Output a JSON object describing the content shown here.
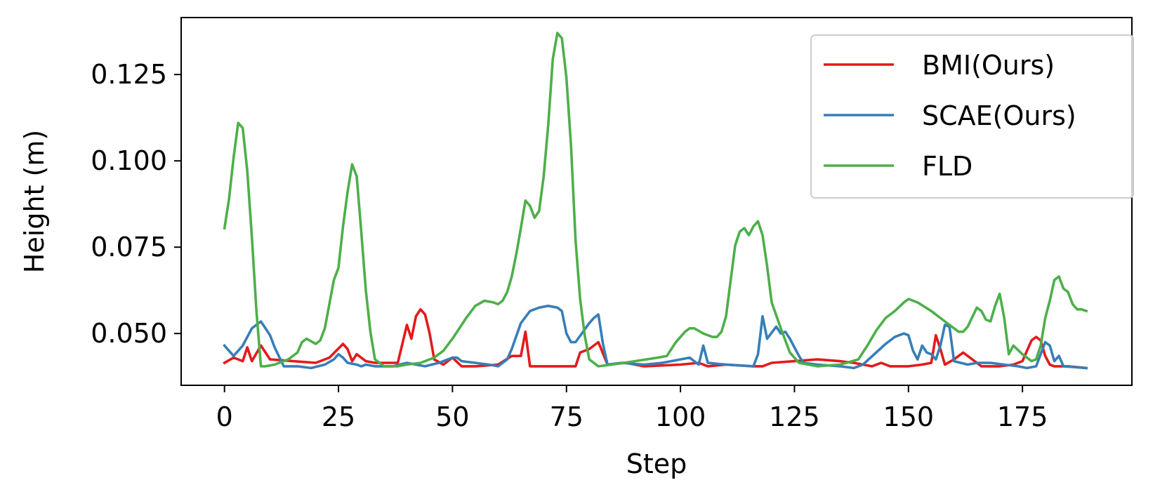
{
  "chart_data": {
    "type": "line",
    "xlabel": "Step",
    "ylabel": "Height (m)",
    "xlim": [
      -9.5,
      199
    ],
    "ylim": [
      0.035,
      0.1415
    ],
    "xticks": [
      0,
      25,
      50,
      75,
      100,
      125,
      150,
      175
    ],
    "xtick_labels": [
      "0",
      "25",
      "50",
      "75",
      "100",
      "125",
      "150",
      "175"
    ],
    "yticks": [
      0.05,
      0.075,
      0.1,
      0.125
    ],
    "ytick_labels": [
      "0.050",
      "0.075",
      "0.100",
      "0.125"
    ],
    "grid": false,
    "legend_position": "top-right",
    "series": [
      {
        "name": "BMI(Ours)",
        "color": "#e41a1c",
        "points": [
          [
            0,
            0.0415
          ],
          [
            2,
            0.043
          ],
          [
            4,
            0.042
          ],
          [
            5,
            0.046
          ],
          [
            6,
            0.042
          ],
          [
            8,
            0.0465
          ],
          [
            10,
            0.0425
          ],
          [
            15,
            0.042
          ],
          [
            20,
            0.0415
          ],
          [
            23,
            0.043
          ],
          [
            26,
            0.047
          ],
          [
            27,
            0.0455
          ],
          [
            28,
            0.042
          ],
          [
            29,
            0.044
          ],
          [
            31,
            0.042
          ],
          [
            33,
            0.0415
          ],
          [
            38,
            0.0415
          ],
          [
            40,
            0.0525
          ],
          [
            41,
            0.0485
          ],
          [
            42,
            0.055
          ],
          [
            43,
            0.057
          ],
          [
            44,
            0.0555
          ],
          [
            45,
            0.05
          ],
          [
            46,
            0.0425
          ],
          [
            48,
            0.041
          ],
          [
            50,
            0.043
          ],
          [
            52,
            0.0405
          ],
          [
            55,
            0.0405
          ],
          [
            60,
            0.041
          ],
          [
            63,
            0.0435
          ],
          [
            65,
            0.0435
          ],
          [
            66,
            0.0505
          ],
          [
            67,
            0.0405
          ],
          [
            72,
            0.0405
          ],
          [
            75,
            0.0405
          ],
          [
            77,
            0.0405
          ],
          [
            78,
            0.0445
          ],
          [
            80,
            0.0455
          ],
          [
            82,
            0.0475
          ],
          [
            84,
            0.041
          ],
          [
            88,
            0.0415
          ],
          [
            92,
            0.0405
          ],
          [
            100,
            0.041
          ],
          [
            104,
            0.0415
          ],
          [
            106,
            0.0405
          ],
          [
            110,
            0.041
          ],
          [
            116,
            0.0405
          ],
          [
            118,
            0.0405
          ],
          [
            120,
            0.0415
          ],
          [
            125,
            0.042
          ],
          [
            130,
            0.0425
          ],
          [
            135,
            0.042
          ],
          [
            138,
            0.0415
          ],
          [
            140,
            0.041
          ],
          [
            142,
            0.0405
          ],
          [
            143,
            0.041
          ],
          [
            144,
            0.0415
          ],
          [
            146,
            0.0405
          ],
          [
            150,
            0.0405
          ],
          [
            153,
            0.041
          ],
          [
            155,
            0.0415
          ],
          [
            156,
            0.0495
          ],
          [
            157,
            0.0455
          ],
          [
            158,
            0.041
          ],
          [
            160,
            0.0425
          ],
          [
            162,
            0.0445
          ],
          [
            164,
            0.0425
          ],
          [
            166,
            0.0405
          ],
          [
            170,
            0.0405
          ],
          [
            173,
            0.041
          ],
          [
            175,
            0.042
          ],
          [
            177,
            0.048
          ],
          [
            178,
            0.049
          ],
          [
            179,
            0.048
          ],
          [
            180,
            0.0435
          ],
          [
            181,
            0.041
          ],
          [
            182,
            0.0405
          ],
          [
            185,
            0.0405
          ],
          [
            189,
            0.04
          ]
        ]
      },
      {
        "name": "SCAE(Ours)",
        "color": "#377eb8",
        "points": [
          [
            0,
            0.0465
          ],
          [
            2,
            0.0435
          ],
          [
            4,
            0.0465
          ],
          [
            6,
            0.0515
          ],
          [
            7,
            0.0525
          ],
          [
            8,
            0.0535
          ],
          [
            10,
            0.0495
          ],
          [
            11,
            0.046
          ],
          [
            13,
            0.0405
          ],
          [
            16,
            0.0405
          ],
          [
            19,
            0.04
          ],
          [
            22,
            0.041
          ],
          [
            24,
            0.0425
          ],
          [
            25,
            0.044
          ],
          [
            26,
            0.043
          ],
          [
            27,
            0.0415
          ],
          [
            29,
            0.041
          ],
          [
            30,
            0.0405
          ],
          [
            31,
            0.041
          ],
          [
            33,
            0.0405
          ],
          [
            37,
            0.0405
          ],
          [
            40,
            0.0415
          ],
          [
            42,
            0.041
          ],
          [
            44,
            0.0405
          ],
          [
            47,
            0.0415
          ],
          [
            50,
            0.043
          ],
          [
            51,
            0.043
          ],
          [
            52,
            0.042
          ],
          [
            55,
            0.0415
          ],
          [
            58,
            0.041
          ],
          [
            60,
            0.0405
          ],
          [
            62,
            0.0425
          ],
          [
            63,
            0.0455
          ],
          [
            65,
            0.053
          ],
          [
            67,
            0.0565
          ],
          [
            69,
            0.0575
          ],
          [
            71,
            0.058
          ],
          [
            73,
            0.0575
          ],
          [
            74,
            0.0565
          ],
          [
            75,
            0.05
          ],
          [
            76,
            0.0475
          ],
          [
            77,
            0.0475
          ],
          [
            80,
            0.053
          ],
          [
            81,
            0.0545
          ],
          [
            82,
            0.0555
          ],
          [
            83,
            0.047
          ],
          [
            84,
            0.041
          ],
          [
            87,
            0.0415
          ],
          [
            92,
            0.041
          ],
          [
            96,
            0.0415
          ],
          [
            100,
            0.0425
          ],
          [
            102,
            0.043
          ],
          [
            104,
            0.041
          ],
          [
            105,
            0.0465
          ],
          [
            106,
            0.0415
          ],
          [
            110,
            0.041
          ],
          [
            116,
            0.0405
          ],
          [
            117,
            0.044
          ],
          [
            118,
            0.055
          ],
          [
            119,
            0.0485
          ],
          [
            121,
            0.052
          ],
          [
            122,
            0.05
          ],
          [
            123,
            0.0505
          ],
          [
            124,
            0.0485
          ],
          [
            126,
            0.0435
          ],
          [
            127,
            0.0415
          ],
          [
            130,
            0.041
          ],
          [
            135,
            0.0405
          ],
          [
            138,
            0.04
          ],
          [
            140,
            0.041
          ],
          [
            145,
            0.047
          ],
          [
            147,
            0.049
          ],
          [
            149,
            0.05
          ],
          [
            150,
            0.0495
          ],
          [
            151,
            0.045
          ],
          [
            152,
            0.0425
          ],
          [
            153,
            0.0465
          ],
          [
            154,
            0.0445
          ],
          [
            155,
            0.044
          ],
          [
            156,
            0.0425
          ],
          [
            157,
            0.0465
          ],
          [
            158,
            0.0525
          ],
          [
            159,
            0.052
          ],
          [
            160,
            0.042
          ],
          [
            163,
            0.041
          ],
          [
            165,
            0.0415
          ],
          [
            168,
            0.0415
          ],
          [
            171,
            0.041
          ],
          [
            174,
            0.0405
          ],
          [
            176,
            0.04
          ],
          [
            178,
            0.0405
          ],
          [
            180,
            0.0475
          ],
          [
            181,
            0.0465
          ],
          [
            182,
            0.042
          ],
          [
            183,
            0.0435
          ],
          [
            184,
            0.0405
          ],
          [
            189,
            0.04
          ]
        ]
      },
      {
        "name": "FLD",
        "color": "#4daf4a",
        "points": [
          [
            0,
            0.0805
          ],
          [
            1,
            0.089
          ],
          [
            2,
            0.101
          ],
          [
            3,
            0.111
          ],
          [
            4,
            0.1095
          ],
          [
            5,
            0.097
          ],
          [
            6,
            0.078
          ],
          [
            7,
            0.0565
          ],
          [
            8,
            0.0405
          ],
          [
            9,
            0.0405
          ],
          [
            11,
            0.041
          ],
          [
            14,
            0.0425
          ],
          [
            16,
            0.0445
          ],
          [
            17,
            0.0475
          ],
          [
            18,
            0.0485
          ],
          [
            20,
            0.047
          ],
          [
            21,
            0.048
          ],
          [
            22,
            0.0515
          ],
          [
            24,
            0.0655
          ],
          [
            25,
            0.069
          ],
          [
            26,
            0.081
          ],
          [
            27,
            0.091
          ],
          [
            28,
            0.099
          ],
          [
            29,
            0.0955
          ],
          [
            30,
            0.0795
          ],
          [
            31,
            0.0625
          ],
          [
            32,
            0.0505
          ],
          [
            33,
            0.0425
          ],
          [
            35,
            0.0405
          ],
          [
            38,
            0.0405
          ],
          [
            40,
            0.041
          ],
          [
            43,
            0.0415
          ],
          [
            46,
            0.043
          ],
          [
            48,
            0.045
          ],
          [
            50,
            0.0485
          ],
          [
            53,
            0.0545
          ],
          [
            55,
            0.058
          ],
          [
            57,
            0.0595
          ],
          [
            59,
            0.059
          ],
          [
            60,
            0.0585
          ],
          [
            61,
            0.0595
          ],
          [
            62,
            0.062
          ],
          [
            63,
            0.0665
          ],
          [
            64,
            0.073
          ],
          [
            65,
            0.0805
          ],
          [
            66,
            0.0885
          ],
          [
            67,
            0.087
          ],
          [
            68,
            0.0835
          ],
          [
            69,
            0.0855
          ],
          [
            70,
            0.0955
          ],
          [
            71,
            0.1105
          ],
          [
            72,
            0.1295
          ],
          [
            73,
            0.137
          ],
          [
            74,
            0.1355
          ],
          [
            75,
            0.124
          ],
          [
            76,
            0.1045
          ],
          [
            77,
            0.077
          ],
          [
            78,
            0.06
          ],
          [
            79,
            0.0495
          ],
          [
            80,
            0.0425
          ],
          [
            82,
            0.0405
          ],
          [
            85,
            0.041
          ],
          [
            90,
            0.042
          ],
          [
            95,
            0.043
          ],
          [
            97,
            0.0435
          ],
          [
            99,
            0.0475
          ],
          [
            101,
            0.0505
          ],
          [
            102,
            0.0515
          ],
          [
            103,
            0.0515
          ],
          [
            105,
            0.05
          ],
          [
            107,
            0.049
          ],
          [
            108,
            0.049
          ],
          [
            109,
            0.0505
          ],
          [
            110,
            0.055
          ],
          [
            112,
            0.0755
          ],
          [
            113,
            0.0795
          ],
          [
            114,
            0.0805
          ],
          [
            115,
            0.0785
          ],
          [
            116,
            0.081
          ],
          [
            117,
            0.0825
          ],
          [
            118,
            0.0785
          ],
          [
            119,
            0.0695
          ],
          [
            120,
            0.059
          ],
          [
            122,
            0.0515
          ],
          [
            124,
            0.0445
          ],
          [
            126,
            0.0415
          ],
          [
            130,
            0.0405
          ],
          [
            135,
            0.041
          ],
          [
            139,
            0.0425
          ],
          [
            141,
            0.0465
          ],
          [
            143,
            0.051
          ],
          [
            145,
            0.0545
          ],
          [
            147,
            0.0565
          ],
          [
            149,
            0.059
          ],
          [
            150,
            0.06
          ],
          [
            152,
            0.059
          ],
          [
            155,
            0.0565
          ],
          [
            158,
            0.0535
          ],
          [
            160,
            0.0515
          ],
          [
            161,
            0.0505
          ],
          [
            162,
            0.0505
          ],
          [
            163,
            0.052
          ],
          [
            165,
            0.0575
          ],
          [
            166,
            0.0565
          ],
          [
            167,
            0.054
          ],
          [
            168,
            0.0535
          ],
          [
            169,
            0.058
          ],
          [
            170,
            0.0615
          ],
          [
            171,
            0.0545
          ],
          [
            172,
            0.044
          ],
          [
            173,
            0.0465
          ],
          [
            175,
            0.044
          ],
          [
            177,
            0.042
          ],
          [
            178,
            0.0425
          ],
          [
            179,
            0.0465
          ],
          [
            180,
            0.0545
          ],
          [
            181,
            0.0595
          ],
          [
            182,
            0.0655
          ],
          [
            183,
            0.0665
          ],
          [
            184,
            0.063
          ],
          [
            185,
            0.062
          ],
          [
            186,
            0.0585
          ],
          [
            187,
            0.057
          ],
          [
            188,
            0.057
          ],
          [
            189,
            0.0565
          ]
        ]
      }
    ]
  }
}
